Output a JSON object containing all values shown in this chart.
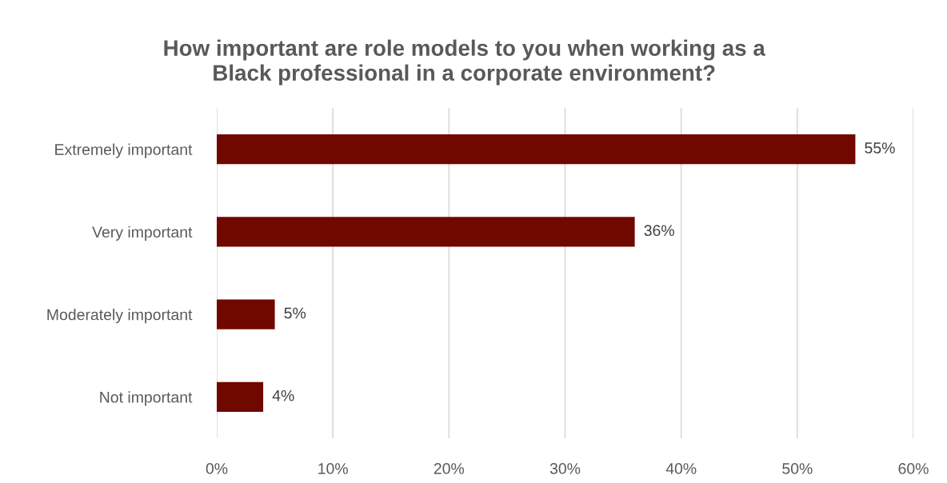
{
  "chart_data": {
    "type": "bar",
    "orientation": "horizontal",
    "title": "How important are role models to you when working as a\nBlack professional in a corporate environment?",
    "categories": [
      "Extremely important",
      "Very important",
      "Moderately important",
      "Not important"
    ],
    "values": [
      55,
      36,
      5,
      4
    ],
    "color": "#700800",
    "value_labels": [
      "55%",
      "36%",
      "5%",
      "4%"
    ],
    "xlim": [
      0,
      60
    ],
    "xticks": [
      {
        "value": 0,
        "label": "0%"
      },
      {
        "value": 10,
        "label": "10%"
      },
      {
        "value": 20,
        "label": "20%"
      },
      {
        "value": 30,
        "label": "30%"
      },
      {
        "value": 40,
        "label": "40%"
      },
      {
        "value": 50,
        "label": "50%"
      },
      {
        "value": 60,
        "label": "60%"
      }
    ],
    "grid": "x",
    "legend": false
  }
}
